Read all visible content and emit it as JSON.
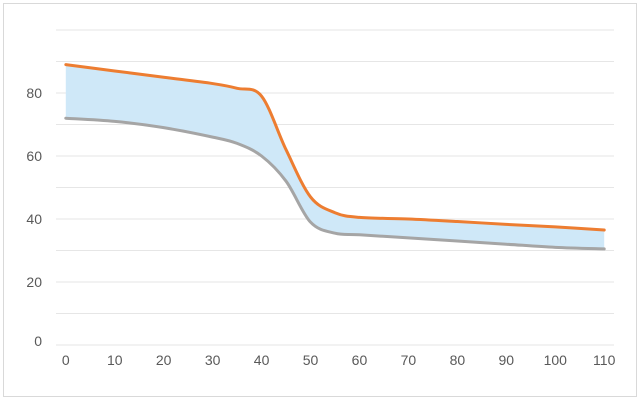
{
  "chart_data": {
    "type": "area",
    "title": "",
    "xlabel": "",
    "ylabel": "",
    "x": [
      0,
      10,
      20,
      30,
      35,
      40,
      45,
      50,
      55,
      60,
      70,
      80,
      90,
      100,
      110
    ],
    "series": [
      {
        "values": [
          89,
          87,
          85,
          83,
          81.5,
          79,
          62,
          47,
          42,
          40.5,
          40,
          39.2,
          38.3,
          37.5,
          36.5
        ]
      },
      {
        "values": [
          72,
          71,
          69,
          66,
          64,
          60,
          52,
          39,
          35.5,
          35,
          34,
          33,
          32,
          31,
          30.5
        ]
      }
    ],
    "band_between_series": true,
    "colors": {
      "upper": "#ed7d31",
      "lower": "#a5a5a5",
      "band": "#cfe8f8"
    },
    "yticks": [
      0,
      20,
      40,
      60,
      80
    ],
    "xticks": [
      0,
      10,
      20,
      30,
      40,
      50,
      60,
      70,
      80,
      90,
      100,
      110
    ],
    "xlim": [
      -2,
      112
    ],
    "ylim": [
      0,
      100
    ],
    "grid": true,
    "legend": "none"
  }
}
